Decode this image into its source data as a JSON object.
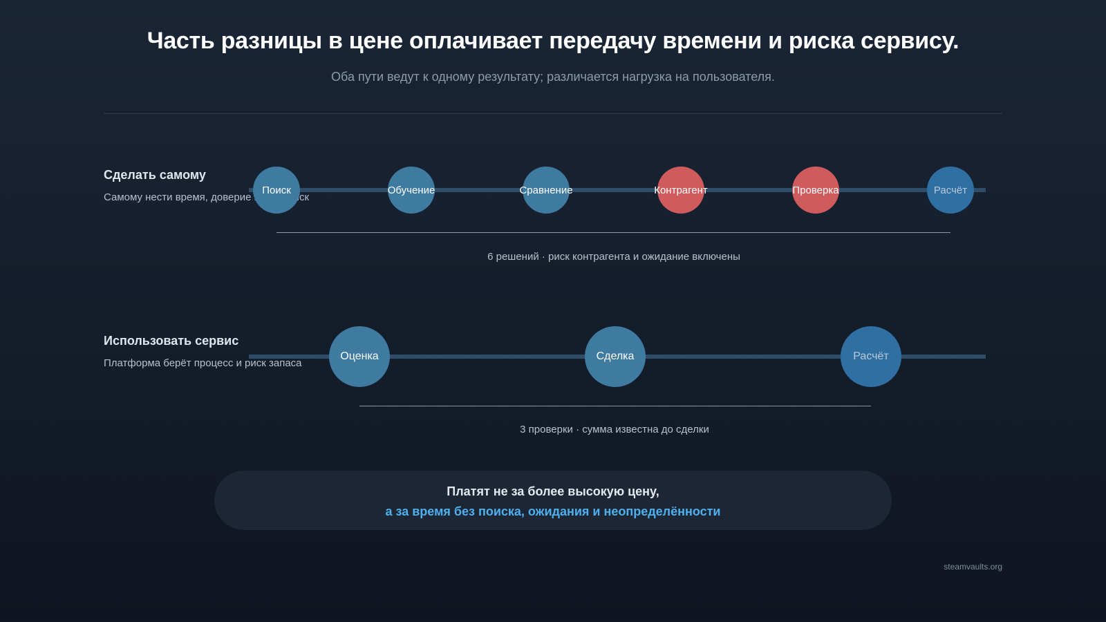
{
  "header": {
    "title": "Часть разницы в цене оплачивает передачу времени и риска сервису.",
    "subtitle": "Оба пути ведут к одному результату; различается нагрузка на пользователя."
  },
  "diy": {
    "title": "Сделать самому",
    "description": "Самому нести время, доверие и свой риск",
    "steps": [
      "Поиск",
      "Обучение",
      "Сравнение",
      "Контрагент",
      "Проверка",
      "Расчёт"
    ],
    "caption": "6 решений · риск контрагента и ожидание включены"
  },
  "service": {
    "title": "Использовать сервис",
    "description": "Платформа берёт процесс и риск запаса",
    "steps": [
      "Оценка",
      "Сделка",
      "Расчёт"
    ],
    "caption": "3 проверки · сумма известна до сделки"
  },
  "callout": {
    "line1": "Платят не за более высокую цену,",
    "line2": "а за время без поиска, ожидания и неопределённости"
  },
  "footer": {
    "site": "steamvaults.org"
  },
  "colors": {
    "step": "#3f7aa1",
    "risk_step": "#d05b5d",
    "final_step": "#2f6fa2",
    "accent": "#4fb0ee"
  }
}
